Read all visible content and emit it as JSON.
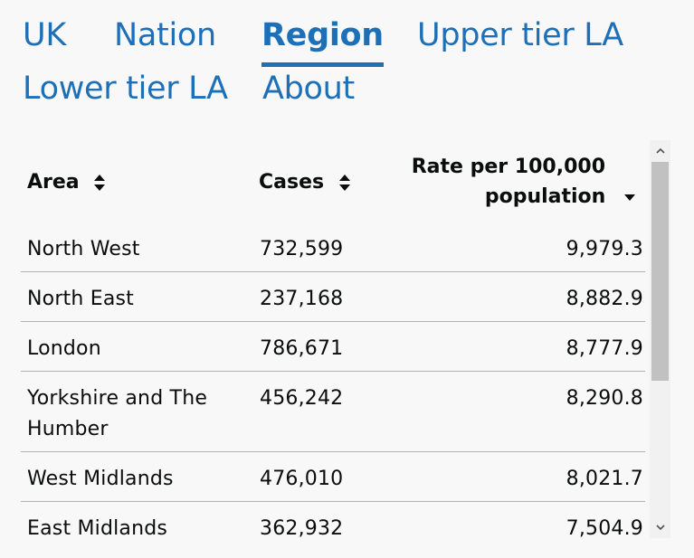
{
  "tabs": [
    {
      "label": "UK",
      "active": false
    },
    {
      "label": "Nation",
      "active": false
    },
    {
      "label": "Region",
      "active": true
    },
    {
      "label": "Upper tier LA",
      "active": false
    },
    {
      "label": "Lower tier LA",
      "active": false
    },
    {
      "label": "About",
      "active": false
    }
  ],
  "table": {
    "columns": {
      "area": "Area",
      "cases": "Cases",
      "rate_line1": "Rate per 100,000",
      "rate_line2": "population"
    },
    "sort": {
      "area": "sort-both",
      "cases": "sort-both",
      "rate": "sort-descending"
    },
    "rows": [
      {
        "area": "North West",
        "cases": "732,599",
        "rate": "9,979.3"
      },
      {
        "area": "North East",
        "cases": "237,168",
        "rate": "8,882.9"
      },
      {
        "area": "London",
        "cases": "786,671",
        "rate": "8,777.9"
      },
      {
        "area": "Yorkshire and The Humber",
        "cases": "456,242",
        "rate": "8,290.8"
      },
      {
        "area": "West Midlands",
        "cases": "476,010",
        "rate": "8,021.7"
      },
      {
        "area": "East Midlands",
        "cases": "362,932",
        "rate": "7,504.9"
      }
    ]
  },
  "colors": {
    "link": "#1d70b8",
    "text": "#0b0c0c",
    "border": "#b1b4b6",
    "background": "#f8f8f8"
  },
  "icons": {
    "scroll_up": "chevron-up-icon",
    "scroll_down": "chevron-down-icon"
  }
}
